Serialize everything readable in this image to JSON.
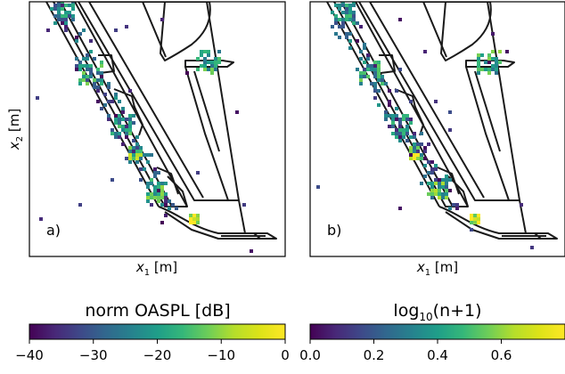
{
  "chart_data": [
    {
      "type": "heatmap",
      "panel_label": "a)",
      "xlabel_base": "x",
      "xlabel_sub": "1",
      "xlabel_unit": " [m]",
      "ylabel_base": "x",
      "ylabel_sub": "2",
      "ylabel_unit": " [m]",
      "colormap": "viridis",
      "colorbar": {
        "label": "norm OASPL [dB]",
        "range": [
          -40,
          0
        ],
        "ticks": [
          "−40",
          "−30",
          "−20",
          "−10",
          "0"
        ],
        "tick_values": [
          -40,
          -30,
          -20,
          -10,
          0
        ]
      }
    },
    {
      "type": "heatmap",
      "panel_label": "b)",
      "xlabel_base": "x",
      "xlabel_sub": "1",
      "xlabel_unit": " [m]",
      "colormap": "viridis",
      "colorbar": {
        "label_base": "log",
        "label_sub": "10",
        "label_tail": "(n+1)",
        "range": [
          0.0,
          0.8
        ],
        "ticks": [
          "0.0",
          "0.2",
          "0.4",
          "0.6"
        ],
        "tick_values": [
          0.0,
          0.2,
          0.4,
          0.6
        ]
      }
    }
  ]
}
